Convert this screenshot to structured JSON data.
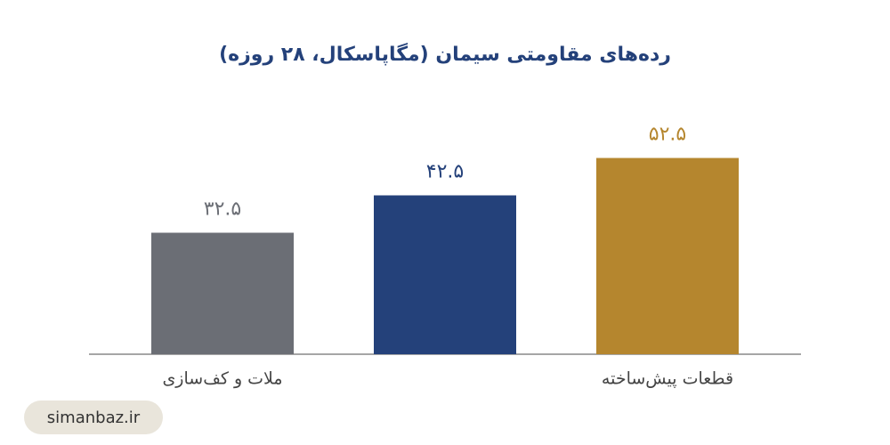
{
  "chart_data": {
    "type": "bar",
    "title": "رده‌های مقاومتی سیمان (مگاپاسکال، ۲۸ روزه)",
    "categories": [
      "ملات و کف‌سازی",
      null,
      "قطعات پیش‌ساخته"
    ],
    "values": [
      32.5,
      42.5,
      52.5
    ],
    "value_labels": [
      "۳۲.۵",
      "۴۲.۵",
      "۵۲.۵"
    ],
    "colors": [
      "#6b6e75",
      "#24417a",
      "#b5862e"
    ],
    "ylim": [
      0,
      60
    ]
  },
  "watermark": "simanbaz.ir"
}
